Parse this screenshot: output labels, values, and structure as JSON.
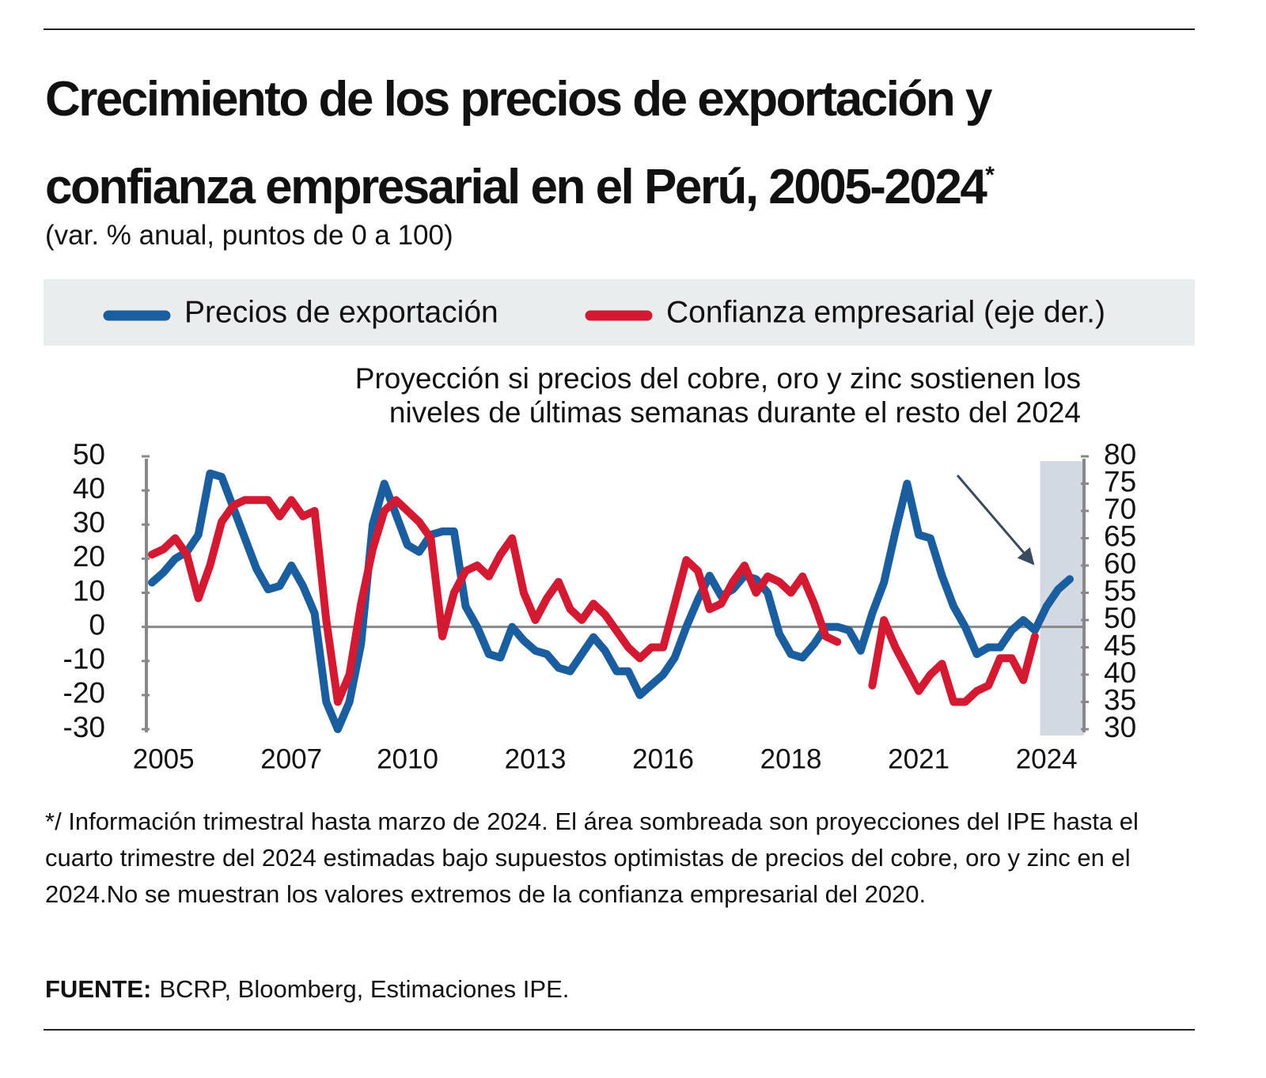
{
  "chart_data": {
    "type": "line",
    "title": "Crecimiento de los precios de exportación y confianza empresarial en el Perú, 2005-2024",
    "title_mark": "*",
    "subtitle": "(var. % anual, puntos de 0 a 100)",
    "annotation": [
      "Proyección si precios del cobre, oro y zinc sostienen los",
      "niveles de últimas semanas durante el resto del 2024"
    ],
    "categories": [
      null,
      "2005",
      null,
      null,
      null,
      null,
      null,
      null,
      null,
      null,
      null,
      null,
      "2007",
      null,
      null,
      null,
      null,
      null,
      null,
      null,
      null,
      null,
      "2010",
      null,
      null,
      null,
      null,
      null,
      null,
      null,
      null,
      null,
      null,
      "2013",
      null,
      null,
      null,
      null,
      null,
      null,
      null,
      null,
      null,
      null,
      "2016",
      null,
      null,
      null,
      null,
      null,
      null,
      null,
      null,
      null,
      null,
      "2018",
      null,
      null,
      null,
      null,
      null,
      null,
      null,
      null,
      null,
      null,
      "2021",
      null,
      null,
      null,
      null,
      null,
      null,
      null,
      null,
      null,
      null,
      "2024",
      null,
      null
    ],
    "series": [
      {
        "name": "Precios de exportación",
        "color": "#1a5e9f",
        "axis": "y",
        "values": [
          13,
          16,
          20,
          22,
          27,
          45,
          44,
          35,
          26,
          17,
          11,
          12,
          18,
          12,
          4,
          -22,
          -30,
          -22,
          -5,
          30,
          42,
          33,
          24,
          22,
          27,
          28,
          28,
          6,
          0,
          -8,
          -9,
          0,
          -4,
          -7,
          -8,
          -12,
          -13,
          -8,
          -3,
          -7,
          -13,
          -13,
          -20,
          -17,
          -14,
          -9,
          0,
          8,
          15,
          9,
          11,
          15,
          14,
          10,
          -2,
          -8,
          -9,
          -5,
          0,
          0,
          -1,
          -7,
          4,
          13,
          28,
          42,
          27,
          26,
          15,
          6,
          0,
          -8,
          -6,
          -6,
          -1,
          2,
          -1,
          6,
          11,
          14
        ]
      },
      {
        "name": "Confianza empresarial (eje der.)",
        "color": "#d41a32",
        "axis": "y2",
        "values": [
          62,
          63,
          65,
          62,
          54,
          60,
          68,
          71,
          72,
          72,
          72,
          69,
          72,
          69,
          70,
          50,
          35,
          40,
          53,
          63,
          70,
          72,
          70,
          68,
          65,
          47,
          55,
          59,
          60,
          58,
          62,
          65,
          55,
          50,
          54,
          57,
          52,
          50,
          53,
          51,
          48,
          45,
          43,
          45,
          45,
          53,
          61,
          59,
          52,
          53,
          57,
          60,
          55,
          58,
          57,
          55,
          58,
          53,
          47,
          46,
          null,
          null,
          38,
          50,
          45,
          41,
          37,
          40,
          42,
          35,
          35,
          37,
          38,
          43,
          43,
          39,
          47,
          null,
          null,
          null
        ]
      }
    ],
    "ylim": [
      -30,
      50
    ],
    "yticks": [
      -30,
      -20,
      -10,
      0,
      10,
      20,
      30,
      40,
      50
    ],
    "y2lim": [
      30,
      80
    ],
    "y2ticks": [
      30,
      35,
      40,
      45,
      50,
      55,
      60,
      65,
      70,
      75,
      80
    ],
    "grid": false,
    "shade_from": 77,
    "note": "*/ Información trimestral hasta marzo de 2024. El área sombreada son proyecciones del IPE hasta el cuarto trimestre del 2024 estimadas bajo supuestos optimistas de precios del cobre, oro y zinc en el 2024.No se muestran los valores extremos de la confianza empresarial del 2020.",
    "source_label": "FUENTE:",
    "source": "BCRP, Bloomberg, Estimaciones IPE."
  }
}
